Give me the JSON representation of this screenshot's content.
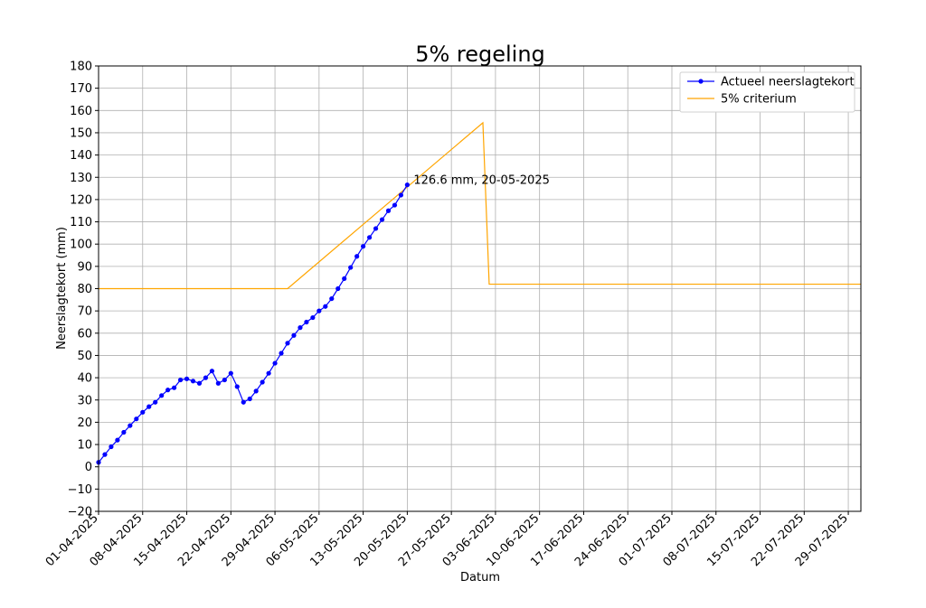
{
  "chart_data": {
    "type": "line",
    "title": "5% regeling",
    "xlabel": "Datum",
    "ylabel": "Neerslagtekort (mm)",
    "xlim": [
      "2025-04-01",
      "2025-07-31"
    ],
    "ylim": [
      -20,
      180
    ],
    "grid": true,
    "legend_position": "top-right",
    "x_tick_labels": [
      "01-04-2025",
      "08-04-2025",
      "15-04-2025",
      "22-04-2025",
      "29-04-2025",
      "06-05-2025",
      "13-05-2025",
      "20-05-2025",
      "27-05-2025",
      "03-06-2025",
      "10-06-2025",
      "17-06-2025",
      "24-06-2025",
      "01-07-2025",
      "08-07-2025",
      "15-07-2025",
      "22-07-2025",
      "29-07-2025"
    ],
    "y_tick_labels": [
      "−20",
      "−10",
      "0",
      "10",
      "20",
      "30",
      "40",
      "50",
      "60",
      "70",
      "80",
      "90",
      "100",
      "110",
      "120",
      "130",
      "140",
      "150",
      "160",
      "170",
      "180"
    ],
    "series": [
      {
        "name": "Actueel neerslagtekort",
        "color": "#0000ff",
        "marker": "circle",
        "x": [
          "2025-04-01",
          "2025-04-02",
          "2025-04-03",
          "2025-04-04",
          "2025-04-05",
          "2025-04-06",
          "2025-04-07",
          "2025-04-08",
          "2025-04-09",
          "2025-04-10",
          "2025-04-11",
          "2025-04-12",
          "2025-04-13",
          "2025-04-14",
          "2025-04-15",
          "2025-04-16",
          "2025-04-17",
          "2025-04-18",
          "2025-04-19",
          "2025-04-20",
          "2025-04-21",
          "2025-04-22",
          "2025-04-23",
          "2025-04-24",
          "2025-04-25",
          "2025-04-26",
          "2025-04-27",
          "2025-04-28",
          "2025-04-29",
          "2025-04-30",
          "2025-05-01",
          "2025-05-02",
          "2025-05-03",
          "2025-05-04",
          "2025-05-05",
          "2025-05-06",
          "2025-05-07",
          "2025-05-08",
          "2025-05-09",
          "2025-05-10",
          "2025-05-11",
          "2025-05-12",
          "2025-05-13",
          "2025-05-14",
          "2025-05-15",
          "2025-05-16",
          "2025-05-17",
          "2025-05-18",
          "2025-05-19",
          "2025-05-20"
        ],
        "y": [
          2,
          5.5,
          9,
          12,
          15.5,
          18.5,
          21.5,
          24.5,
          27,
          29,
          32,
          34.5,
          35.5,
          39,
          39.5,
          38.5,
          37.5,
          40,
          43,
          37.5,
          39,
          42,
          36,
          29,
          30.5,
          34,
          38,
          42,
          46.5,
          51,
          55.5,
          59,
          62.5,
          65,
          67,
          70,
          72,
          75.5,
          80,
          84.5,
          89.5,
          94.5,
          99,
          103,
          107,
          111,
          115,
          117.5,
          122,
          126.6
        ]
      },
      {
        "name": "5% criterium",
        "color": "#ffa500",
        "marker": "none",
        "x": [
          "2025-04-01",
          "2025-05-01",
          "2025-06-01",
          "2025-06-02",
          "2025-07-31"
        ],
        "y": [
          80,
          80,
          154.5,
          82,
          82
        ]
      }
    ],
    "annotations": [
      {
        "text": "126.6 mm, 20-05-2025",
        "x": "2025-05-20",
        "y": 126.6
      }
    ]
  }
}
